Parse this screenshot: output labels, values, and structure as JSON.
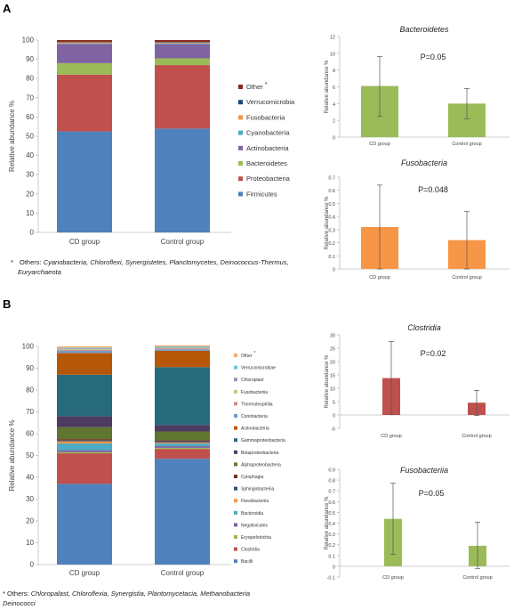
{
  "panels": [
    {
      "label": "A"
    },
    {
      "label": "B"
    }
  ],
  "chart_data": [
    {
      "id": "a_stacked",
      "type": "bar",
      "stacked": true,
      "ylabel": "Relative abundance %",
      "ylim": [
        0,
        100
      ],
      "yticks": [
        0,
        10,
        20,
        30,
        40,
        50,
        60,
        70,
        80,
        90,
        100
      ],
      "categories": [
        "CD group",
        "Control group"
      ],
      "series": [
        {
          "name": "Firmicutes",
          "color": "#4f81bd",
          "values": [
            52.5,
            54
          ]
        },
        {
          "name": "Proteobacteria",
          "color": "#c0504d",
          "values": [
            29.5,
            33
          ]
        },
        {
          "name": "Bacteroidetes",
          "color": "#9bbb59",
          "values": [
            6,
            3.5
          ]
        },
        {
          "name": "Actinobacteria",
          "color": "#8064a2",
          "values": [
            10,
            7.5
          ]
        },
        {
          "name": "Cyanobacteria",
          "color": "#4bacc6",
          "values": [
            0.3,
            0.3
          ]
        },
        {
          "name": "Fusobacteria",
          "color": "#f79646",
          "values": [
            0.6,
            0.4
          ]
        },
        {
          "name": "Verrucomicrobia",
          "color": "#1f497d",
          "values": [
            0.2,
            0.3
          ]
        },
        {
          "name": "Other",
          "color": "#8b2a1c",
          "values": [
            0.9,
            1.0
          ]
        }
      ],
      "legend_order": [
        "Other",
        "Verrucomicrobia",
        "Fusobacteria",
        "Cyanobacteria",
        "Actinobacteria",
        "Bacteroidetes",
        "Proteobacteria",
        "Firmicutes"
      ],
      "other_marker": "*"
    },
    {
      "id": "a_bacteroidetes",
      "type": "bar",
      "title": "Bacteroidetes",
      "annotation": "P=0.05",
      "ylabel": "Relative abundance %",
      "ylim": [
        0,
        12
      ],
      "yticks": [
        0,
        2,
        4,
        6,
        8,
        10,
        12
      ],
      "categories": [
        "CD group",
        "Control group"
      ],
      "values": [
        6.1,
        4.0
      ],
      "error": [
        [
          2.5,
          9.6
        ],
        [
          2.2,
          5.8
        ]
      ],
      "color": "#9bbb59"
    },
    {
      "id": "a_fusobacteria",
      "type": "bar",
      "title": "Fusobacteria",
      "annotation": "P=0.048",
      "ylabel": "Relative abundance %",
      "ylim": [
        0,
        0.7
      ],
      "yticks": [
        0,
        0.1,
        0.2,
        0.3,
        0.4,
        0.5,
        0.6,
        0.7
      ],
      "categories": [
        "CD group",
        "Control group"
      ],
      "values": [
        0.32,
        0.22
      ],
      "error": [
        [
          0.0,
          0.64
        ],
        [
          0.0,
          0.44
        ]
      ],
      "color": "#f79646"
    },
    {
      "id": "b_stacked",
      "type": "bar",
      "stacked": true,
      "ylabel": "Relative abundance %",
      "ylim": [
        0,
        100
      ],
      "yticks": [
        0,
        10,
        20,
        30,
        40,
        50,
        60,
        70,
        80,
        90,
        100
      ],
      "categories": [
        "CD group",
        "Control group"
      ],
      "series": [
        {
          "name": "Bacilli",
          "color": "#4f81bd",
          "values": [
            37,
            48.5
          ]
        },
        {
          "name": "Clostridia",
          "color": "#c0504d",
          "values": [
            14,
            4.5
          ]
        },
        {
          "name": "Erysipelotrichia",
          "color": "#9bbb59",
          "values": [
            0.5,
            0.5
          ]
        },
        {
          "name": "Negativicutes",
          "color": "#8064a2",
          "values": [
            1.0,
            0.8
          ]
        },
        {
          "name": "Bacteroidia",
          "color": "#4bacc6",
          "values": [
            3.0,
            1.2
          ]
        },
        {
          "name": "Flavobacteriia",
          "color": "#f79646",
          "values": [
            1.0,
            0.5
          ]
        },
        {
          "name": "Sphingobacteriia",
          "color": "#2c4d75",
          "values": [
            0.5,
            0.5
          ]
        },
        {
          "name": "Cytophagia",
          "color": "#772c2a",
          "values": [
            0.5,
            0.5
          ]
        },
        {
          "name": "Alphaproteobacteria",
          "color": "#5f7530",
          "values": [
            5.5,
            4.0
          ]
        },
        {
          "name": "Betaproteobacteria",
          "color": "#4d3b62",
          "values": [
            5.0,
            3.0
          ]
        },
        {
          "name": "Gammaproteobacteria",
          "color": "#276a7c",
          "values": [
            19.0,
            26.5
          ]
        },
        {
          "name": "Actinobacteria",
          "color": "#b65708",
          "values": [
            10.0,
            7.5
          ]
        },
        {
          "name": "Coriobacteria",
          "color": "#729aca",
          "values": [
            1.0,
            0.7
          ]
        },
        {
          "name": "Thermoleophilia",
          "color": "#ce8c8a",
          "values": [
            0.5,
            0.4
          ]
        },
        {
          "name": "Fusobacteriia",
          "color": "#b2cf7c",
          "values": [
            0.4,
            0.3
          ]
        },
        {
          "name": "Chloroplast",
          "color": "#a08fc0",
          "values": [
            0.3,
            0.3
          ]
        },
        {
          "name": "Verrucomicrobiae",
          "color": "#6cc5dc",
          "values": [
            0.3,
            0.3
          ]
        },
        {
          "name": "Other",
          "color": "#f9ab6b",
          "values": [
            0.5,
            0.5
          ]
        }
      ],
      "legend_order": [
        "Other",
        "Verrucomicrobiae",
        "Chloroplast",
        "Fusobacteriia",
        "Thermoleophilia",
        "Coriobacteria",
        "Actinobacteria",
        "Gammaproteobacteria",
        "Betaproteobacteria",
        "Alphaproteobacteria",
        "Cytophagia",
        "Sphingobacteriia",
        "Flavobacteriia",
        "Bacteroidia",
        "Negativicutes",
        "Erysipelotrichia",
        "Clostridia",
        "Bacilli"
      ],
      "other_marker": "*"
    },
    {
      "id": "b_clostridia",
      "type": "bar",
      "title": "Clostridia",
      "annotation": "P=0.02",
      "ylabel": "Relative abundance %",
      "ylim": [
        -5,
        30
      ],
      "yticks": [
        -5,
        0,
        5,
        10,
        15,
        20,
        25,
        30
      ],
      "categories": [
        "CD group",
        "Control group"
      ],
      "values": [
        13.8,
        4.6
      ],
      "error": [
        [
          0.2,
          27.5
        ],
        [
          -0.2,
          9.2
        ]
      ],
      "color": "#c0504d"
    },
    {
      "id": "b_fusobacteriia",
      "type": "bar",
      "title": "Fusobacteriia",
      "annotation": "P=0.05",
      "ylabel": "Relative abundance %",
      "ylim": [
        -0.1,
        0.9
      ],
      "yticks": [
        -0.1,
        0,
        0.1,
        0.2,
        0.3,
        0.4,
        0.5,
        0.6,
        0.7,
        0.8,
        0.9
      ],
      "categories": [
        "CD group",
        "Control group"
      ],
      "values": [
        0.44,
        0.19
      ],
      "error": [
        [
          0.11,
          0.77
        ],
        [
          -0.02,
          0.41
        ]
      ],
      "color": "#9bbb59"
    }
  ],
  "notes": {
    "a": {
      "marker": "*",
      "prefix": "Others: ",
      "line1": "Cyanobacteria, Chloroflexi, Synergistetes, Planctomycetes, Deinococcus-Thermus,",
      "line2": "Euryarchaeota"
    },
    "b": {
      "marker": "*",
      "prefix": "Others: ",
      "line1": "Chloropalast, Chloroflexia, Synergistia, Plantomycetacia, Methanobacteria",
      "line2": "Deinococci"
    }
  }
}
